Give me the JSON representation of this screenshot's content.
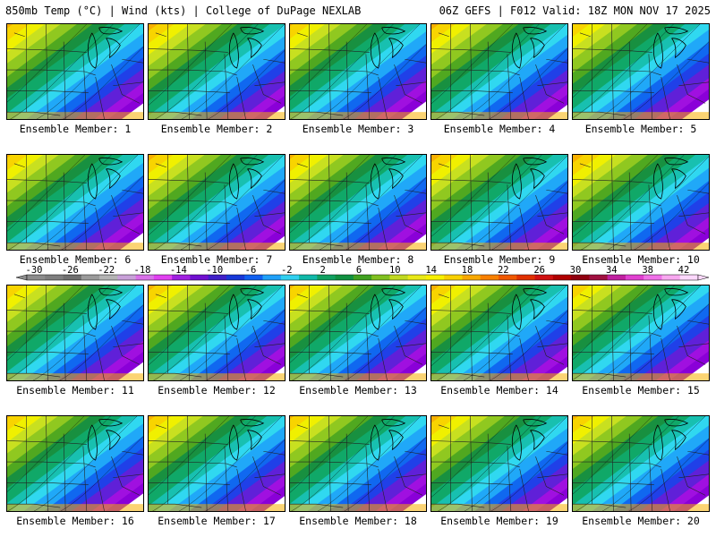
{
  "header": {
    "left_title": "850mb Temp (°C) | Wind (kts) | College of DuPage NEXLAB",
    "right_title": "06Z GEFS | F012 Valid: 18Z MON NOV 17 2025"
  },
  "colorbar": {
    "tick_labels": [
      "-30",
      "-26",
      "-22",
      "-18",
      "-14",
      "-10",
      "-6",
      "-2",
      "2",
      "6",
      "10",
      "14",
      "18",
      "22",
      "26",
      "30",
      "34",
      "38",
      "42"
    ],
    "colors": [
      "#8c8c8c",
      "#7e7e7e",
      "#6e6e6e",
      "#9a9a9a",
      "#b4b4b4",
      "#c8a0d8",
      "#d870e8",
      "#e040f0",
      "#a020e0",
      "#7010d0",
      "#4020c8",
      "#1838d8",
      "#1060f0",
      "#20a0f8",
      "#30d0f0",
      "#10b8a8",
      "#10a060",
      "#109040",
      "#40a020",
      "#80c020",
      "#c0d820",
      "#e8e818",
      "#f8f000",
      "#f8d000",
      "#f8a800",
      "#f88000",
      "#f05800",
      "#e03000",
      "#d01010",
      "#b00000",
      "#900010",
      "#a01040",
      "#c020a0",
      "#e040d0",
      "#f070e8",
      "#f8a8f0",
      "#fcd8fc"
    ]
  },
  "members": [
    {
      "label": "Ensemble Member: 1",
      "shift": 0
    },
    {
      "label": "Ensemble Member: 2",
      "shift": 4
    },
    {
      "label": "Ensemble Member: 3",
      "shift": -3
    },
    {
      "label": "Ensemble Member: 4",
      "shift": 2
    },
    {
      "label": "Ensemble Member: 5",
      "shift": -6
    },
    {
      "label": "Ensemble Member: 6",
      "shift": -2
    },
    {
      "label": "Ensemble Member: 7",
      "shift": 3
    },
    {
      "label": "Ensemble Member: 8",
      "shift": 0
    },
    {
      "label": "Ensemble Member: 9",
      "shift": 5
    },
    {
      "label": "Ensemble Member: 10",
      "shift": 6
    },
    {
      "label": "Ensemble Member: 11",
      "shift": -4
    },
    {
      "label": "Ensemble Member: 12",
      "shift": 2
    },
    {
      "label": "Ensemble Member: 13",
      "shift": -1
    },
    {
      "label": "Ensemble Member: 14",
      "shift": 3
    },
    {
      "label": "Ensemble Member: 15",
      "shift": -5
    },
    {
      "label": "Ensemble Member: 16",
      "shift": -3
    },
    {
      "label": "Ensemble Member: 17",
      "shift": 1
    },
    {
      "label": "Ensemble Member: 18",
      "shift": -2
    },
    {
      "label": "Ensemble Member: 19",
      "shift": 4
    },
    {
      "label": "Ensemble Member: 20",
      "shift": 0
    }
  ]
}
